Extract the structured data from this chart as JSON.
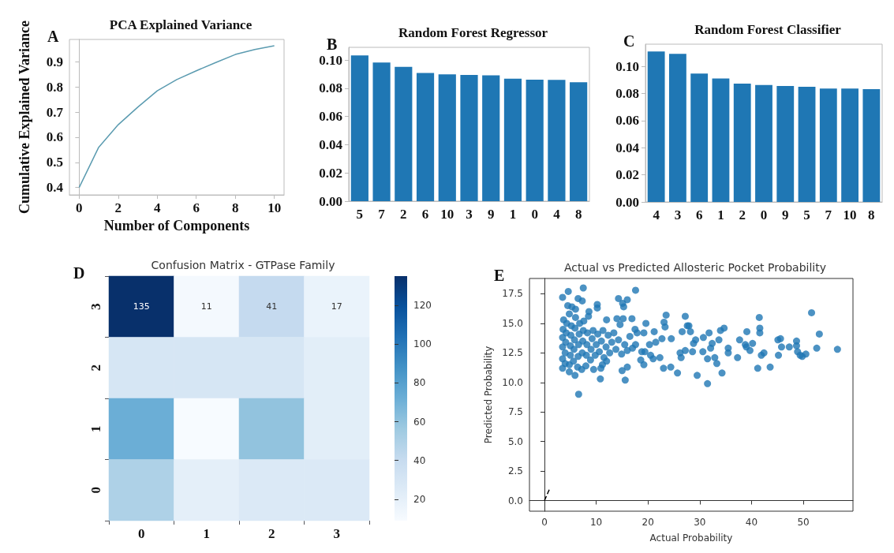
{
  "chart_data": [
    {
      "type": "line",
      "title": "PCA Explained Variance",
      "xlabel": "Number of Components",
      "ylabel": "Cumulative Explained Variance",
      "annotations": [
        "A"
      ],
      "x": [
        0,
        1,
        2,
        3,
        4,
        5,
        6,
        7,
        8,
        9,
        10
      ],
      "series": [
        {
          "color": "#5b9bb0",
          "values": [
            0.4,
            0.56,
            0.65,
            0.72,
            0.785,
            0.83,
            0.865,
            0.898,
            0.93,
            0.95,
            0.965
          ]
        }
      ],
      "marker": "none",
      "line_style": "solid",
      "xlim": [
        -0.5,
        10.5
      ],
      "xticks": [
        0,
        2,
        4,
        6,
        8,
        10
      ],
      "ylim": [
        0.37,
        0.99
      ],
      "yticks": [
        0.4,
        0.5,
        0.6,
        0.7,
        0.8,
        0.9
      ]
    },
    {
      "type": "bar",
      "title": "Random Forest Regressor",
      "annotations": [
        "B"
      ],
      "categories": [
        "5",
        "7",
        "2",
        "6",
        "10",
        "3",
        "9",
        "1",
        "0",
        "4",
        "8"
      ],
      "series": [
        {
          "color": "#1f77b4",
          "values": [
            0.1033,
            0.0982,
            0.0951,
            0.0909,
            0.0899,
            0.0894,
            0.0892,
            0.0868,
            0.0861,
            0.0859,
            0.0843
          ]
        }
      ],
      "ylim": [
        0,
        0.109
      ],
      "yticks": [
        {
          "value": 0,
          "label": "0.00"
        },
        {
          "value": 0.02,
          "label": "0.02"
        },
        {
          "value": 0.04,
          "label": "0.04"
        },
        {
          "value": 0.06,
          "label": "0.06"
        },
        {
          "value": 0.08,
          "label": "0.08"
        },
        {
          "value": 0.1,
          "label": "0.10"
        }
      ]
    },
    {
      "type": "bar",
      "title": "Random Forest Classifier",
      "annotations": [
        "C"
      ],
      "categories": [
        "4",
        "3",
        "6",
        "1",
        "2",
        "0",
        "9",
        "5",
        "7",
        "10",
        "8"
      ],
      "series": [
        {
          "color": "#1f77b4",
          "values": [
            0.1111,
            0.1093,
            0.0948,
            0.0911,
            0.0874,
            0.0864,
            0.0856,
            0.085,
            0.0837,
            0.0837,
            0.0833
          ]
        }
      ],
      "ylim": [
        0,
        0.1165
      ],
      "yticks": [
        {
          "value": 0,
          "label": "0.00"
        },
        {
          "value": 0.02,
          "label": "0.02"
        },
        {
          "value": 0.04,
          "label": "0.04"
        },
        {
          "value": 0.06,
          "label": "0.06"
        },
        {
          "value": 0.08,
          "label": "0.08"
        },
        {
          "value": 0.1,
          "label": "0.10"
        }
      ]
    },
    {
      "type": "heatmap",
      "title": "Confusion Matrix - GTPase Family",
      "annotations": [
        "D"
      ],
      "categories": [
        "0",
        "1",
        "2",
        "3"
      ],
      "y_categories": [
        "3",
        "2",
        "1",
        "0"
      ],
      "cells": [
        [
          135,
          11,
          41,
          17
        ],
        [
          30,
          30,
          30,
          22
        ],
        [
          72,
          9,
          60,
          22
        ],
        [
          50,
          21,
          27,
          27
        ]
      ],
      "cell_labels": [
        [
          "135",
          "11",
          "41",
          "17"
        ],
        [
          null,
          null,
          null,
          null
        ],
        [
          null,
          null,
          null,
          null
        ],
        [
          null,
          null,
          null,
          null
        ]
      ],
      "clim": [
        9,
        135
      ],
      "cticks": [
        20,
        40,
        60,
        80,
        100,
        120
      ]
    },
    {
      "type": "scatter",
      "title": "Actual vs Predicted Allosteric Pocket Probability",
      "xlabel": "Actual Probability",
      "ylabel": "Predicted Probability",
      "annotations": [
        "E"
      ],
      "marker": "circle",
      "series": [
        {
          "color": "#1f77b4",
          "x": [
            3.5,
            4.6,
            6.5,
            7.5,
            7.3,
            10.2,
            10.2,
            14.3,
            15.1,
            15.3,
            16.0,
            17.6,
            16.9,
            19.6,
            23.5,
            23.3,
            23.1,
            27.2,
            27.6,
            27.9,
            26.6,
            28.2,
            29.2,
            28.8,
            30.7,
            31.8,
            32.4,
            32.1,
            31.5,
            30.6,
            32.9,
            33.3,
            33.7,
            34.0,
            34.7,
            35.5,
            35.5,
            37.3,
            37.7,
            38.8,
            39.1,
            39.0,
            39.7,
            40.2,
            41.2,
            41.5,
            41.6,
            41.6,
            41.9,
            42.4,
            43.6,
            45.1,
            45.6,
            45.8,
            45.2,
            47.3,
            48.7,
            48.7,
            48.9,
            49.4,
            49.8,
            50.5,
            51.6,
            52.6,
            53.1,
            56.6,
            31.5,
            29.5,
            34.3,
            25.7,
            24.4,
            23.0,
            26.4,
            26.2,
            27.2,
            28.6,
            22.3,
            21.0,
            20.5,
            19.2,
            18.6,
            19.4,
            20.3,
            21.5,
            22.7,
            24.5,
            21.2,
            19.2,
            18.8,
            17.9,
            17.6,
            16.0,
            15.6,
            15.0,
            10.8,
            10.9,
            6.6,
            5.9,
            4.8,
            3.5,
            3.5,
            3.5,
            3.5,
            3.6,
            3.7,
            4.0,
            4.0,
            4.1,
            4.2,
            4.3,
            4.5,
            4.8,
            4.8,
            5.0,
            5.0,
            5.1,
            5.2,
            5.3,
            5.6,
            5.7,
            5.8,
            5.9,
            6.0,
            6.0,
            6.4,
            6.5,
            6.6,
            6.7,
            6.8,
            7.2,
            7.3,
            7.4,
            7.5,
            7.6,
            8.0,
            8.1,
            8.2,
            8.3,
            8.5,
            8.9,
            9.0,
            9.2,
            9.4,
            9.8,
            10.0,
            10.3,
            10.6,
            11.0,
            11.3,
            11.5,
            11.9,
            12.0,
            12.3,
            12.6,
            13.0,
            13.4,
            13.8,
            14.0,
            14.3,
            14.6,
            14.9,
            15.2,
            15.5,
            16.0,
            16.5,
            17.0,
            17.5,
            11.2,
            12.0,
            9.5,
            8.6
          ],
          "values": [
            17.2,
            17.7,
            17.1,
            18.0,
            16.9,
            16.6,
            16.3,
            17.1,
            16.7,
            16.4,
            17.0,
            17.8,
            15.4,
            15.0,
            15.7,
            14.7,
            15.1,
            15.6,
            14.8,
            14.8,
            14.3,
            14.3,
            13.6,
            13.3,
            13.8,
            14.2,
            13.3,
            12.9,
            12.0,
            12.6,
            12.1,
            11.6,
            13.6,
            14.4,
            14.6,
            12.9,
            12.5,
            12.1,
            13.6,
            13.2,
            14.3,
            13.0,
            12.7,
            13.3,
            11.2,
            15.5,
            14.6,
            14.2,
            12.3,
            12.5,
            11.3,
            13.6,
            13.7,
            13.0,
            12.3,
            13.0,
            13.5,
            13.1,
            12.6,
            12.3,
            12.2,
            12.4,
            15.9,
            12.9,
            14.1,
            12.8,
            9.9,
            10.6,
            10.8,
            10.8,
            11.3,
            11.2,
            12.1,
            12.5,
            12.7,
            12.6,
            12.1,
            12.0,
            12.3,
            11.5,
            11.9,
            12.6,
            13.2,
            13.4,
            13.7,
            13.7,
            14.3,
            14.2,
            12.6,
            14.2,
            13.2,
            11.3,
            10.2,
            11.0,
            10.3,
            11.2,
            9.0,
            10.6,
            10.9,
            11.2,
            12.0,
            13.0,
            13.8,
            14.5,
            15.3,
            11.6,
            12.5,
            13.4,
            14.2,
            15.0,
            16.5,
            15.8,
            11.5,
            12.3,
            13.1,
            14.0,
            14.8,
            16.4,
            11.8,
            12.8,
            13.6,
            14.6,
            15.5,
            16.2,
            11.3,
            12.2,
            13.2,
            14.1,
            15.0,
            11.1,
            12.5,
            13.5,
            14.4,
            15.2,
            11.4,
            12.3,
            13.2,
            14.2,
            15.6,
            11.9,
            12.8,
            13.7,
            14.4,
            12.3,
            13.2,
            14.1,
            12.6,
            13.5,
            14.4,
            12.1,
            13.0,
            15.3,
            14.0,
            12.5,
            13.4,
            14.2,
            12.8,
            15.4,
            13.6,
            14.9,
            12.4,
            15.4,
            13.2,
            12.7,
            13.9,
            12.9,
            14.5,
            11.5,
            11.8,
            11.1,
            16.0
          ]
        },
        {
          "type": "line",
          "color": "#000000",
          "x": [
            0,
            1
          ],
          "values": [
            0,
            1
          ],
          "marker": "none",
          "line_style": "dashed"
        }
      ],
      "xlim": [
        -2.9,
        59.6
      ],
      "xticks": [
        0,
        10,
        20,
        30,
        40,
        50
      ],
      "ylim": [
        -0.9,
        18.8
      ],
      "yticks": [
        {
          "value": 0,
          "label": "0.0"
        },
        {
          "value": 2.5,
          "label": "2.5"
        },
        {
          "value": 5,
          "label": "5.0"
        },
        {
          "value": 7.5,
          "label": "7.5"
        },
        {
          "value": 10,
          "label": "10.0"
        },
        {
          "value": 12.5,
          "label": "12.5"
        },
        {
          "value": 15,
          "label": "15.0"
        },
        {
          "value": 17.5,
          "label": "17.5"
        }
      ]
    }
  ]
}
